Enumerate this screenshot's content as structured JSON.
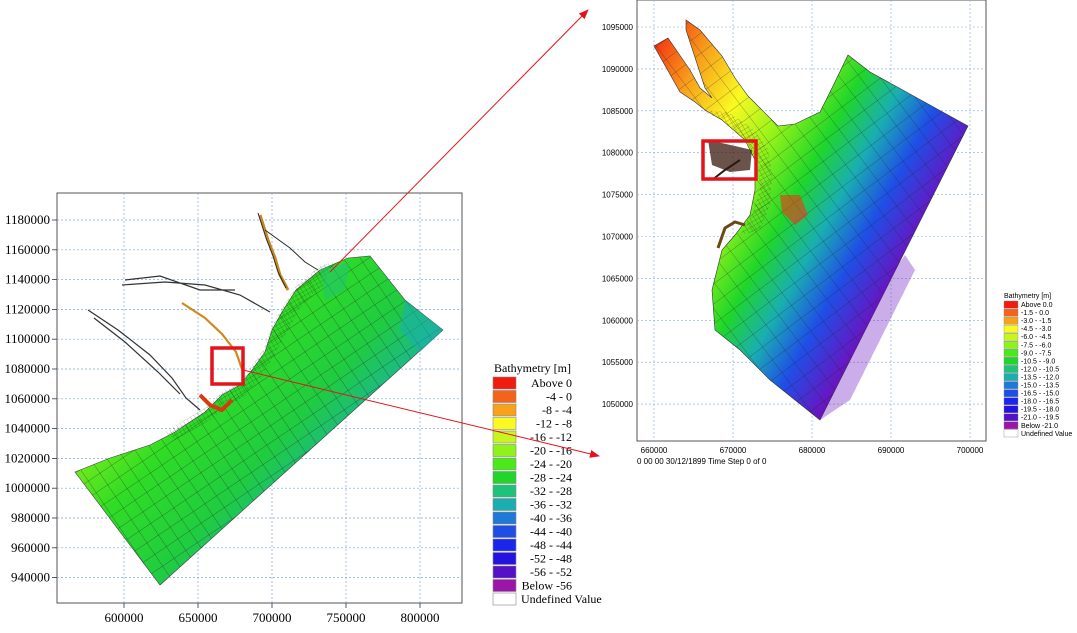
{
  "colors": {
    "arrow": "#e3141b",
    "highlight_box": "#e3141b",
    "gridline": "#7fa9d9",
    "mesh_line": "#1a1a1a"
  },
  "left_map": {
    "x_ticks": [
      "600000",
      "650000",
      "700000",
      "750000",
      "800000"
    ],
    "y_ticks": [
      "1180000",
      "1160000",
      "1140000",
      "1120000",
      "1100000",
      "1080000",
      "1060000",
      "1040000",
      "1020000",
      "1000000",
      "980000",
      "960000",
      "940000"
    ],
    "legend": {
      "title": "Bathymetry [m]",
      "items": [
        {
          "label": "Above   0",
          "color": "#f21b10"
        },
        {
          "label": "-4 -   0",
          "color": "#f5631a"
        },
        {
          "label": "-8 -  -4",
          "color": "#f8a21c"
        },
        {
          "label": "-12 -  -8",
          "color": "#fafa22"
        },
        {
          "label": "-16 - -12",
          "color": "#c8f51d"
        },
        {
          "label": "-20 - -16",
          "color": "#8ff21a"
        },
        {
          "label": "-24 - -20",
          "color": "#4de81a"
        },
        {
          "label": "-28 - -24",
          "color": "#20d62a"
        },
        {
          "label": "-32 - -28",
          "color": "#1fc27a"
        },
        {
          "label": "-36 - -32",
          "color": "#1aaeb1"
        },
        {
          "label": "-40 - -36",
          "color": "#1e7ad6"
        },
        {
          "label": "-44 - -40",
          "color": "#1f4ee6"
        },
        {
          "label": "-48 - -44",
          "color": "#1a26ee"
        },
        {
          "label": "-52 - -48",
          "color": "#2413e0"
        },
        {
          "label": "-56 - -52",
          "color": "#5412c8"
        },
        {
          "label": "Below  -56",
          "color": "#9b16a8"
        },
        {
          "label": "Undefined Value",
          "color": "#ffffff"
        }
      ]
    }
  },
  "right_map": {
    "x_ticks": [
      "660000",
      "670000",
      "680000",
      "690000",
      "700000"
    ],
    "y_ticks": [
      "1095000",
      "1090000",
      "1085000",
      "1080000",
      "1075000",
      "1070000",
      "1065000",
      "1060000",
      "1055000",
      "1050000"
    ],
    "footer": "0 00 00 30/12/1899  Time Step 0 of 0",
    "legend": {
      "title": "Bathymetry [m]",
      "items": [
        {
          "label": "Above   0.0",
          "color": "#f21b10"
        },
        {
          "label": "-1.5 -   0.0",
          "color": "#f5631a"
        },
        {
          "label": "-3.0 -  -1.5",
          "color": "#f8a21c"
        },
        {
          "label": "-4.5 -  -3.0",
          "color": "#fafa22"
        },
        {
          "label": "-6.0 -  -4.5",
          "color": "#c8f51d"
        },
        {
          "label": "-7.5 -  -6.0",
          "color": "#8ff21a"
        },
        {
          "label": "-9.0 -  -7.5",
          "color": "#4de81a"
        },
        {
          "label": "-10.5 -  -9.0",
          "color": "#20d62a"
        },
        {
          "label": "-12.0 - -10.5",
          "color": "#1fc27a"
        },
        {
          "label": "-13.5 - -12.0",
          "color": "#1aaeb1"
        },
        {
          "label": "-15.0 - -13.5",
          "color": "#1e7ad6"
        },
        {
          "label": "-16.5 - -15.0",
          "color": "#1f4ee6"
        },
        {
          "label": "-18.0 - -16.5",
          "color": "#1a26ee"
        },
        {
          "label": "-19.5 - -18.0",
          "color": "#2413e0"
        },
        {
          "label": "-21.0 - -19.5",
          "color": "#5412c8"
        },
        {
          "label": "Below  -21.0",
          "color": "#9b16a8"
        },
        {
          "label": "Undefined Value",
          "color": "#ffffff"
        }
      ]
    }
  }
}
